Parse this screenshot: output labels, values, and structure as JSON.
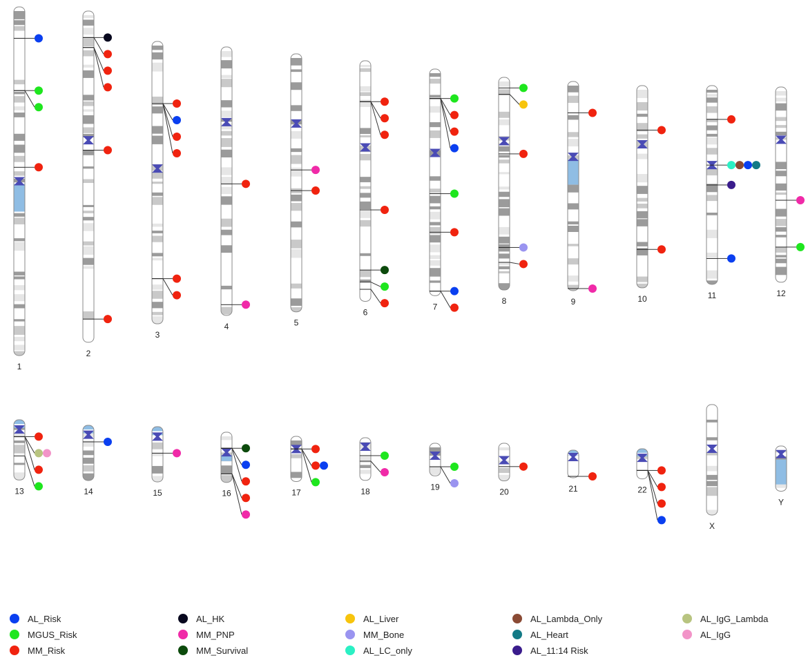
{
  "traits": {
    "AL_Risk": "#0a3ff0",
    "MGUS_Risk": "#1ee61e",
    "MM_Risk": "#f0230f",
    "AL_HK": "#08081e",
    "MM_PNP": "#f02aa8",
    "MM_Survival": "#0c4a0c",
    "AL_Liver": "#f7c40d",
    "MM_Bone": "#9a94f0",
    "AL_LC_only": "#2bf0c4",
    "AL_Lambda_Only": "#8a4a34",
    "AL_Heart": "#137a86",
    "AL_11:14 Risk": "#3a1c8c",
    "AL_IgG_Lambda": "#b8c480",
    "AL_IgG": "#f294c8"
  },
  "legend": [
    "AL_Risk",
    "MGUS_Risk",
    "MM_Risk",
    "AL_HK",
    "MM_PNP",
    "MM_Survival",
    "AL_Liver",
    "MM_Bone",
    "AL_LC_only",
    "AL_Lambda_Only",
    "AL_Heart",
    "AL_11:14 Risk",
    "AL_IgG_Lambda",
    "AL_IgG"
  ],
  "chromosomes": [
    {
      "name": "1",
      "length": 1.0,
      "centromere": 0.5,
      "p_acro": false,
      "q_blue": true,
      "hits": [
        {
          "pos": 0.09,
          "traits": [
            "AL_Risk"
          ]
        },
        {
          "pos": 0.24,
          "traits": [
            "MGUS_Risk"
          ]
        },
        {
          "pos": 0.24,
          "traits": [
            "MGUS_Risk"
          ]
        },
        {
          "pos": 0.46,
          "traits": [
            "MM_Risk"
          ]
        }
      ]
    },
    {
      "name": "2",
      "length": 0.95,
      "centromere": 0.39,
      "p_acro": false,
      "q_blue": false,
      "hits": [
        {
          "pos": 0.08,
          "traits": [
            "AL_HK"
          ]
        },
        {
          "pos": 0.08,
          "traits": [
            "MM_Risk"
          ]
        },
        {
          "pos": 0.11,
          "traits": [
            "MM_Risk"
          ]
        },
        {
          "pos": 0.11,
          "traits": [
            "MM_Risk"
          ]
        },
        {
          "pos": 0.42,
          "traits": [
            "MM_Risk"
          ]
        },
        {
          "pos": 0.93,
          "traits": [
            "MM_Risk"
          ]
        }
      ]
    },
    {
      "name": "3",
      "length": 0.81,
      "centromere": 0.45,
      "p_acro": false,
      "q_blue": false,
      "hits": [
        {
          "pos": 0.22,
          "traits": [
            "MM_Risk"
          ]
        },
        {
          "pos": 0.22,
          "traits": [
            "AL_Risk"
          ]
        },
        {
          "pos": 0.22,
          "traits": [
            "MM_Risk"
          ]
        },
        {
          "pos": 0.22,
          "traits": [
            "MM_Risk"
          ]
        },
        {
          "pos": 0.84,
          "traits": [
            "MM_Risk"
          ]
        },
        {
          "pos": 0.84,
          "traits": [
            "MM_Risk"
          ]
        }
      ]
    },
    {
      "name": "4",
      "length": 0.77,
      "centromere": 0.28,
      "p_acro": false,
      "q_blue": false,
      "hits": [
        {
          "pos": 0.51,
          "traits": [
            "MM_Risk"
          ]
        },
        {
          "pos": 0.96,
          "traits": [
            "MM_PNP"
          ]
        }
      ]
    },
    {
      "name": "5",
      "length": 0.74,
      "centromere": 0.27,
      "p_acro": false,
      "q_blue": false,
      "hits": [
        {
          "pos": 0.45,
          "traits": [
            "MM_PNP"
          ]
        },
        {
          "pos": 0.53,
          "traits": [
            "MM_Risk"
          ]
        }
      ]
    },
    {
      "name": "6",
      "length": 0.69,
      "centromere": 0.36,
      "p_acro": false,
      "q_blue": false,
      "hits": [
        {
          "pos": 0.17,
          "traits": [
            "MM_Risk"
          ]
        },
        {
          "pos": 0.17,
          "traits": [
            "MM_Risk"
          ]
        },
        {
          "pos": 0.17,
          "traits": [
            "MM_Risk"
          ]
        },
        {
          "pos": 0.62,
          "traits": [
            "MM_Risk"
          ]
        },
        {
          "pos": 0.87,
          "traits": [
            "MM_Survival"
          ]
        },
        {
          "pos": 0.92,
          "traits": [
            "MGUS_Risk"
          ]
        },
        {
          "pos": 0.95,
          "traits": [
            "MM_Risk"
          ]
        }
      ]
    },
    {
      "name": "7",
      "length": 0.65,
      "centromere": 0.37,
      "p_acro": false,
      "q_blue": false,
      "hits": [
        {
          "pos": 0.13,
          "traits": [
            "MGUS_Risk"
          ]
        },
        {
          "pos": 0.13,
          "traits": [
            "MM_Risk"
          ]
        },
        {
          "pos": 0.13,
          "traits": [
            "MM_Risk"
          ]
        },
        {
          "pos": 0.13,
          "traits": [
            "AL_Risk"
          ]
        },
        {
          "pos": 0.55,
          "traits": [
            "MGUS_Risk"
          ]
        },
        {
          "pos": 0.72,
          "traits": [
            "MM_Risk"
          ]
        },
        {
          "pos": 0.98,
          "traits": [
            "AL_Risk"
          ]
        },
        {
          "pos": 0.98,
          "traits": [
            "MM_Risk"
          ]
        }
      ]
    },
    {
      "name": "8",
      "length": 0.61,
      "centromere": 0.3,
      "p_acro": false,
      "q_blue": false,
      "hits": [
        {
          "pos": 0.05,
          "traits": [
            "MGUS_Risk"
          ]
        },
        {
          "pos": 0.08,
          "traits": [
            "AL_Liver"
          ]
        },
        {
          "pos": 0.36,
          "traits": [
            "MM_Risk"
          ]
        },
        {
          "pos": 0.8,
          "traits": [
            "MM_Bone"
          ]
        },
        {
          "pos": 0.87,
          "traits": [
            "MM_Risk"
          ]
        }
      ]
    },
    {
      "name": "9",
      "length": 0.6,
      "centromere": 0.36,
      "p_acro": false,
      "q_blue": true,
      "hits": [
        {
          "pos": 0.15,
          "traits": [
            "MM_Risk"
          ]
        },
        {
          "pos": 0.99,
          "traits": [
            "MM_PNP"
          ]
        }
      ]
    },
    {
      "name": "10",
      "length": 0.58,
      "centromere": 0.29,
      "p_acro": false,
      "q_blue": false,
      "hits": [
        {
          "pos": 0.22,
          "traits": [
            "MM_Risk"
          ]
        },
        {
          "pos": 0.81,
          "traits": [
            "MM_Risk"
          ]
        }
      ]
    },
    {
      "name": "11",
      "length": 0.57,
      "centromere": 0.4,
      "p_acro": false,
      "q_blue": false,
      "hits": [
        {
          "pos": 0.17,
          "traits": [
            "MM_Risk"
          ]
        },
        {
          "pos": 0.4,
          "traits": [
            "AL_LC_only",
            "AL_Lambda_Only",
            "AL_Risk",
            "AL_Heart"
          ]
        },
        {
          "pos": 0.5,
          "traits": [
            "AL_11:14 Risk"
          ]
        },
        {
          "pos": 0.87,
          "traits": [
            "AL_Risk"
          ]
        }
      ]
    },
    {
      "name": "12",
      "length": 0.56,
      "centromere": 0.27,
      "p_acro": false,
      "q_blue": false,
      "hits": [
        {
          "pos": 0.58,
          "traits": [
            "MM_PNP"
          ]
        },
        {
          "pos": 0.82,
          "traits": [
            "MGUS_Risk"
          ]
        }
      ]
    },
    {
      "name": "13",
      "length": 0.24,
      "centromere": 0.16,
      "p_acro": true,
      "q_blue": false,
      "hits": [
        {
          "pos": 0.28,
          "traits": [
            "MM_Risk"
          ]
        },
        {
          "pos": 0.28,
          "traits": [
            "AL_IgG_Lambda",
            "AL_IgG"
          ]
        },
        {
          "pos": 0.28,
          "traits": [
            "MM_Risk"
          ]
        },
        {
          "pos": 0.6,
          "traits": [
            "MGUS_Risk"
          ]
        }
      ]
    },
    {
      "name": "14",
      "length": 0.22,
      "centromere": 0.17,
      "p_acro": true,
      "q_blue": false,
      "hits": [
        {
          "pos": 0.3,
          "traits": [
            "AL_Risk"
          ]
        }
      ]
    },
    {
      "name": "15",
      "length": 0.22,
      "centromere": 0.18,
      "p_acro": true,
      "q_blue": false,
      "hits": [
        {
          "pos": 0.48,
          "traits": [
            "MM_PNP"
          ]
        }
      ]
    },
    {
      "name": "16",
      "length": 0.2,
      "centromere": 0.4,
      "p_acro": false,
      "q_blue": true,
      "hits": [
        {
          "pos": 0.32,
          "traits": [
            "MM_Survival"
          ]
        },
        {
          "pos": 0.32,
          "traits": [
            "AL_Risk"
          ]
        },
        {
          "pos": 0.32,
          "traits": [
            "MM_Risk"
          ]
        },
        {
          "pos": 0.83,
          "traits": [
            "MM_Risk"
          ]
        },
        {
          "pos": 0.83,
          "traits": [
            "MM_PNP"
          ]
        }
      ]
    },
    {
      "name": "17",
      "length": 0.18,
      "centromere": 0.28,
      "p_acro": false,
      "q_blue": false,
      "hits": [
        {
          "pos": 0.28,
          "traits": [
            "MM_Risk"
          ]
        },
        {
          "pos": 0.28,
          "traits": [
            "MM_Risk",
            "AL_Risk"
          ]
        },
        {
          "pos": 0.28,
          "traits": [
            "MGUS_Risk"
          ]
        }
      ]
    },
    {
      "name": "18",
      "length": 0.17,
      "centromere": 0.21,
      "p_acro": false,
      "q_blue": false,
      "hits": [
        {
          "pos": 0.42,
          "traits": [
            "MGUS_Risk"
          ]
        },
        {
          "pos": 0.55,
          "traits": [
            "MM_PNP"
          ]
        }
      ]
    },
    {
      "name": "19",
      "length": 0.13,
      "centromere": 0.38,
      "p_acro": false,
      "q_blue": false,
      "hits": [
        {
          "pos": 0.72,
          "traits": [
            "MGUS_Risk"
          ]
        },
        {
          "pos": 0.72,
          "traits": [
            "MM_Bone"
          ]
        }
      ]
    },
    {
      "name": "20",
      "length": 0.15,
      "centromere": 0.45,
      "p_acro": false,
      "q_blue": false,
      "hits": [
        {
          "pos": 0.62,
          "traits": [
            "MM_Risk"
          ]
        }
      ]
    },
    {
      "name": "21",
      "length": 0.11,
      "centromere": 0.25,
      "p_acro": true,
      "q_blue": false,
      "hits": [
        {
          "pos": 0.95,
          "traits": [
            "MM_Risk"
          ]
        }
      ]
    },
    {
      "name": "22",
      "length": 0.12,
      "centromere": 0.3,
      "p_acro": true,
      "q_blue": false,
      "hits": [
        {
          "pos": 0.72,
          "traits": [
            "MM_Risk"
          ]
        },
        {
          "pos": 0.72,
          "traits": [
            "MM_Risk"
          ]
        },
        {
          "pos": 0.72,
          "traits": [
            "MM_Risk"
          ]
        },
        {
          "pos": 0.72,
          "traits": [
            "AL_Risk"
          ]
        }
      ]
    },
    {
      "name": "X",
      "length": 0.44,
      "centromere": 0.4,
      "p_acro": false,
      "q_blue": false,
      "hits": []
    },
    {
      "name": "Y",
      "length": 0.18,
      "centromere": 0.18,
      "p_acro": false,
      "q_blue": true,
      "hits": []
    }
  ]
}
